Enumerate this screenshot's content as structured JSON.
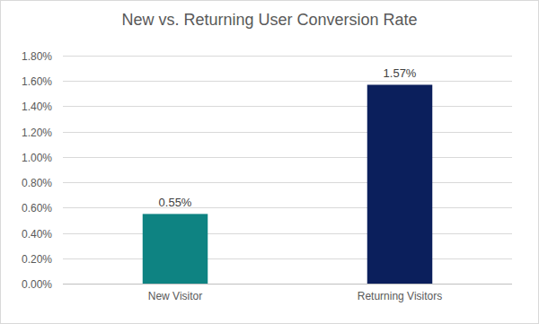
{
  "chart_data": {
    "type": "bar",
    "title": "New vs. Returning User Conversion Rate",
    "categories": [
      "New Visitor",
      "Returning Visitors"
    ],
    "values": [
      0.55,
      1.57
    ],
    "value_labels": [
      "0.55%",
      "1.57%"
    ],
    "colors": [
      "#0e8382",
      "#0b1f5c"
    ],
    "ylim": [
      0,
      1.8
    ],
    "yticks": [
      {
        "value": 0,
        "label": "0.00%"
      },
      {
        "value": 0.2,
        "label": "0.20%"
      },
      {
        "value": 0.4,
        "label": "0.40%"
      },
      {
        "value": 0.6,
        "label": "0.60%"
      },
      {
        "value": 0.8,
        "label": "0.80%"
      },
      {
        "value": 1.0,
        "label": "1.00%"
      },
      {
        "value": 1.2,
        "label": "1.20%"
      },
      {
        "value": 1.4,
        "label": "1.40%"
      },
      {
        "value": 1.6,
        "label": "1.60%"
      },
      {
        "value": 1.8,
        "label": "1.80%"
      }
    ],
    "grid": true,
    "data_labels": true
  }
}
